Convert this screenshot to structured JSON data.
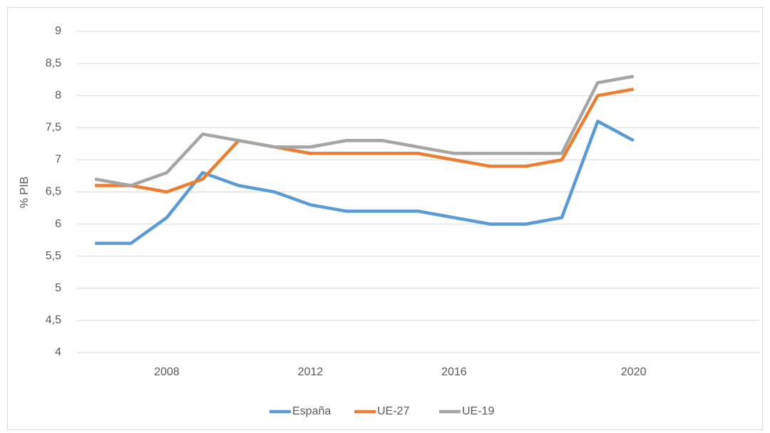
{
  "chart_data": {
    "type": "line",
    "y_label": "% PIB",
    "categories": [
      null,
      null,
      "2008",
      null,
      null,
      null,
      "2012",
      null,
      null,
      null,
      "2016",
      null,
      null,
      null,
      null,
      "2020",
      null,
      null,
      null
    ],
    "series": [
      {
        "name": "España",
        "color": "#5b9bd5",
        "values": [
          5.7,
          5.7,
          6.1,
          6.8,
          6.6,
          6.5,
          6.3,
          6.2,
          6.2,
          6.2,
          6.1,
          6.0,
          6.0,
          6.1,
          7.6,
          7.3,
          null,
          null,
          null
        ]
      },
      {
        "name": "UE-27",
        "color": "#ed7d31",
        "values": [
          6.6,
          6.6,
          6.5,
          6.7,
          7.3,
          7.2,
          7.1,
          7.1,
          7.1,
          7.1,
          7.0,
          6.9,
          6.9,
          7.0,
          8.0,
          8.1,
          null,
          null,
          null
        ]
      },
      {
        "name": "UE-19",
        "color": "#a5a5a5",
        "values": [
          6.7,
          6.6,
          6.8,
          7.4,
          7.3,
          7.2,
          7.2,
          7.3,
          7.3,
          7.2,
          7.1,
          7.1,
          7.1,
          7.1,
          8.2,
          8.3,
          null,
          null,
          null
        ]
      }
    ],
    "ylim": [
      4,
      9
    ],
    "yticks": [
      4,
      {
        "value": 4.5,
        "label": "4,5"
      },
      5,
      {
        "value": 5.5,
        "label": "5,5"
      },
      6,
      {
        "value": 6.5,
        "label": "6,5"
      },
      7,
      {
        "value": 7.5,
        "label": "7,5"
      },
      8,
      {
        "value": 8.5,
        "label": "8,5"
      },
      9
    ],
    "grid": true,
    "legend": "bottom"
  }
}
